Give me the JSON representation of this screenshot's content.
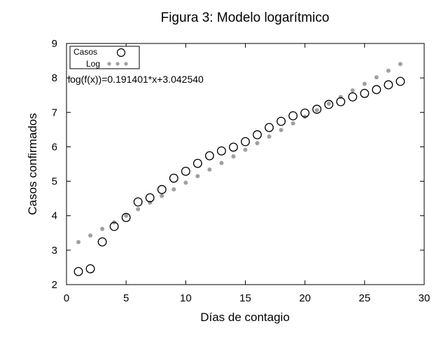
{
  "chart_data": {
    "type": "scatter",
    "title": "Figura 3: Modelo logarítmico",
    "xlabel": "Días de contagio",
    "ylabel": "Casos confirmados",
    "xlim": [
      0,
      30
    ],
    "ylim": [
      2,
      9
    ],
    "xticks": [
      0,
      5,
      10,
      15,
      20,
      25,
      30
    ],
    "yticks": [
      2,
      3,
      4,
      5,
      6,
      7,
      8,
      9
    ],
    "grid": false,
    "legend_placement": "top-left",
    "annotation": "log(f(x))=0.191401*x+3.042540",
    "series": [
      {
        "name": "Casos",
        "marker": "open-circle",
        "color": "#000000",
        "x": [
          1,
          2,
          3,
          4,
          5,
          6,
          7,
          8,
          9,
          10,
          11,
          12,
          13,
          14,
          15,
          16,
          17,
          18,
          19,
          20,
          21,
          22,
          23,
          24,
          25,
          26,
          27,
          28
        ],
        "y": [
          2.38,
          2.46,
          3.24,
          3.69,
          3.95,
          4.4,
          4.52,
          4.76,
          5.09,
          5.29,
          5.52,
          5.74,
          5.88,
          5.99,
          6.15,
          6.35,
          6.56,
          6.74,
          6.9,
          6.98,
          7.09,
          7.23,
          7.31,
          7.45,
          7.55,
          7.66,
          7.8,
          7.9
        ]
      },
      {
        "name": "Log",
        "marker": "filled-star",
        "color": "#a0a0a0",
        "x": [
          1,
          2,
          3,
          4,
          5,
          6,
          7,
          8,
          9,
          10,
          11,
          12,
          13,
          14,
          15,
          16,
          17,
          18,
          19,
          20,
          21,
          22,
          23,
          24,
          25,
          26,
          27,
          28
        ],
        "y": [
          3.234,
          3.425,
          3.617,
          3.808,
          4.0,
          4.191,
          4.382,
          4.574,
          4.765,
          4.957,
          5.148,
          5.339,
          5.531,
          5.722,
          5.914,
          6.105,
          6.296,
          6.488,
          6.679,
          6.871,
          7.062,
          7.253,
          7.445,
          7.636,
          7.828,
          8.019,
          8.21,
          8.402
        ]
      }
    ]
  }
}
